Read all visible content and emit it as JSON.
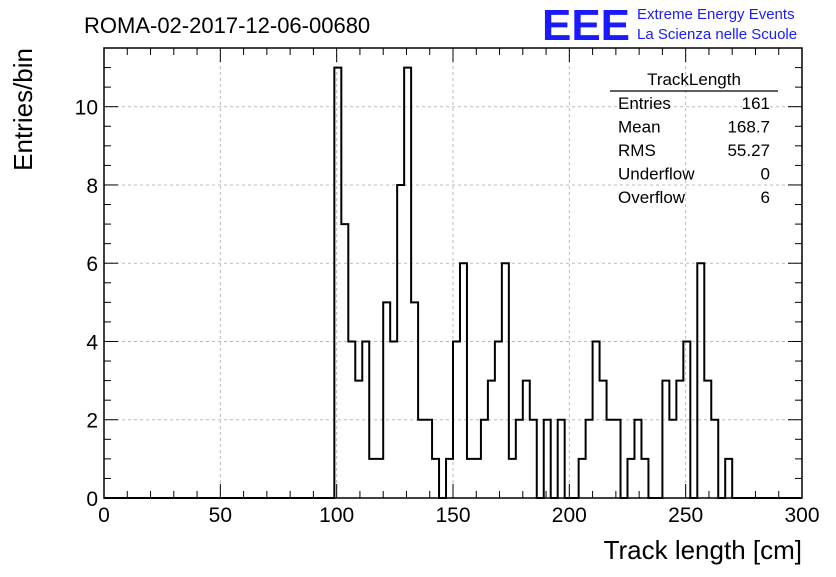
{
  "header": {
    "run_title": "ROMA-02-2017-12-06-00680",
    "logo_text": "EEE",
    "org_line1": "Extreme Energy Events",
    "org_line2": "La Scienza nelle Scuole"
  },
  "colors": {
    "logo": "#1a1aff",
    "histogram": "#000000",
    "grid": "#bbbbbb"
  },
  "stats_box": {
    "title": "TrackLength",
    "rows": [
      {
        "label": "Entries",
        "value": "161"
      },
      {
        "label": "Mean",
        "value": "168.7"
      },
      {
        "label": "RMS",
        "value": "55.27"
      },
      {
        "label": "Underflow",
        "value": "0"
      },
      {
        "label": "Overflow",
        "value": "6"
      }
    ]
  },
  "chart_data": {
    "type": "histogram",
    "xlabel": "Track length [cm]",
    "ylabel": "Entries/bin",
    "xlim": [
      0,
      300
    ],
    "ylim": [
      0,
      11.5
    ],
    "bin_width": 3,
    "grid": true,
    "x_ticks": [
      0,
      50,
      100,
      150,
      200,
      250,
      300
    ],
    "y_ticks": [
      0,
      2,
      4,
      6,
      8,
      10
    ],
    "counts": [
      0,
      0,
      0,
      0,
      0,
      0,
      0,
      0,
      0,
      0,
      0,
      0,
      0,
      0,
      0,
      0,
      0,
      0,
      0,
      0,
      0,
      0,
      0,
      0,
      0,
      0,
      0,
      0,
      0,
      0,
      0,
      0,
      0,
      11,
      7,
      4,
      3,
      4,
      1,
      1,
      5,
      4,
      8,
      11,
      5,
      2,
      2,
      1,
      0,
      1,
      4,
      6,
      1,
      1,
      2,
      3,
      4,
      6,
      1,
      2,
      3,
      2,
      0,
      2,
      0,
      2,
      0,
      0,
      1,
      2,
      4,
      3,
      2,
      2,
      0,
      1,
      2,
      1,
      0,
      0,
      3,
      2,
      3,
      4,
      0,
      6,
      3,
      2,
      0,
      1,
      0
    ]
  }
}
